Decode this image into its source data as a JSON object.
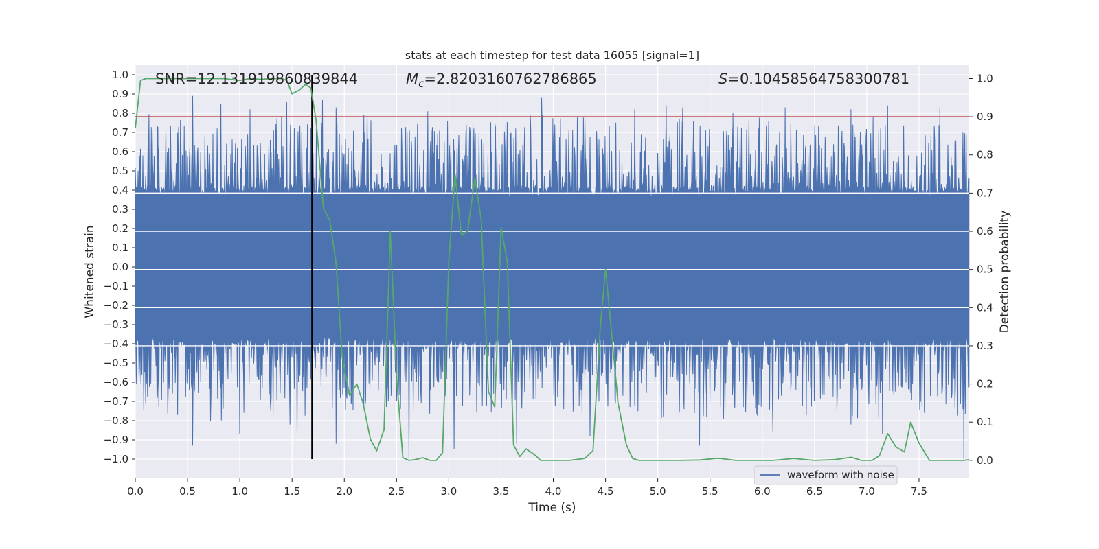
{
  "chart_data": {
    "type": "line",
    "title": "stats at each timestep for test data 16055 [signal=1]",
    "xlabel": "Time (s)",
    "ylabel_left": "Whitened strain",
    "ylabel_right": "Detection probability",
    "xlim": [
      0.0,
      7.98
    ],
    "ylim_left": [
      -1.1,
      1.05
    ],
    "ylim_right": [
      -0.047,
      1.035
    ],
    "x_ticks": [
      "0.0",
      "0.5",
      "1.0",
      "1.5",
      "2.0",
      "2.5",
      "3.0",
      "3.5",
      "4.0",
      "4.5",
      "5.0",
      "5.5",
      "6.0",
      "6.5",
      "7.0",
      "7.5"
    ],
    "x_tick_values": [
      0.0,
      0.5,
      1.0,
      1.5,
      2.0,
      2.5,
      3.0,
      3.5,
      4.0,
      4.5,
      5.0,
      5.5,
      6.0,
      6.5,
      7.0,
      7.5
    ],
    "y_ticks_left": [
      "1.0",
      "0.9",
      "0.8",
      "0.7",
      "0.6",
      "0.5",
      "0.4",
      "0.3",
      "0.2",
      "0.1",
      "0.0",
      "−0.1",
      "−0.2",
      "−0.3",
      "−0.4",
      "−0.5",
      "−0.6",
      "−0.7",
      "−0.8",
      "−0.9",
      "−1.0"
    ],
    "y_tick_values_left": [
      1.0,
      0.9,
      0.8,
      0.7,
      0.6,
      0.5,
      0.4,
      0.3,
      0.2,
      0.1,
      0.0,
      -0.1,
      -0.2,
      -0.3,
      -0.4,
      -0.5,
      -0.6,
      -0.7,
      -0.8,
      -0.9,
      -1.0
    ],
    "y_ticks_right": [
      "1.0",
      "0.9",
      "0.8",
      "0.7",
      "0.6",
      "0.5",
      "0.4",
      "0.3",
      "0.2",
      "0.1",
      "0.0"
    ],
    "y_tick_values_right": [
      1.0,
      0.9,
      0.8,
      0.7,
      0.6,
      0.5,
      0.4,
      0.3,
      0.2,
      0.1,
      0.0
    ],
    "grid": true,
    "legend": {
      "entries": [
        "waveform with noise"
      ],
      "placement": "lower-right"
    },
    "annotations": {
      "snr": "SNR=12.131919860839844",
      "mc_symbol": "M",
      "mc_subscript": "c",
      "mc_value": "=2.8203160762786865",
      "s_symbol": "S",
      "s_value": "=0.10458564758300781"
    },
    "threshold_right": 0.9,
    "event_time": 1.69,
    "waveform": {
      "name": "waveform with noise",
      "color": "#4c72b0",
      "sample_rate_note": "dense noise trace, envelope approx ±0.4 with spikes to ±0.9",
      "spikes_up": [
        [
          0.55,
          0.89
        ],
        [
          0.82,
          0.85
        ],
        [
          1.1,
          0.82
        ],
        [
          1.45,
          0.86
        ],
        [
          1.79,
          0.87
        ],
        [
          1.92,
          0.83
        ],
        [
          2.22,
          0.8
        ],
        [
          2.8,
          0.81
        ],
        [
          3.23,
          0.75
        ],
        [
          3.89,
          0.88
        ],
        [
          4.3,
          0.79
        ],
        [
          4.78,
          0.82
        ],
        [
          5.08,
          0.84
        ],
        [
          5.24,
          0.83
        ],
        [
          5.72,
          0.8
        ],
        [
          6.22,
          0.83
        ],
        [
          6.85,
          0.82
        ],
        [
          7.2,
          0.84
        ],
        [
          7.7,
          0.83
        ]
      ],
      "spikes_down": [
        [
          0.55,
          -0.93
        ],
        [
          0.72,
          -0.8
        ],
        [
          1.0,
          -0.87
        ],
        [
          1.48,
          -0.82
        ],
        [
          1.55,
          -0.88
        ],
        [
          1.92,
          -0.92
        ],
        [
          2.62,
          -1.0
        ],
        [
          3.05,
          -0.95
        ],
        [
          3.65,
          -0.92
        ],
        [
          4.35,
          -0.88
        ],
        [
          5.4,
          -0.93
        ],
        [
          6.1,
          -0.86
        ],
        [
          6.85,
          -0.82
        ],
        [
          7.15,
          -0.87
        ],
        [
          7.93,
          -1.0
        ]
      ]
    },
    "probability": {
      "name": "Detection probability",
      "color": "#55a868",
      "x": [
        0.0,
        0.05,
        0.1,
        0.2,
        0.4,
        0.6,
        0.85,
        1.0,
        1.1,
        1.2,
        1.3,
        1.4,
        1.45,
        1.5,
        1.57,
        1.63,
        1.68,
        1.73,
        1.8,
        1.86,
        1.92,
        1.98,
        2.05,
        2.12,
        2.18,
        2.25,
        2.31,
        2.38,
        2.44,
        2.5,
        2.56,
        2.62,
        2.68,
        2.75,
        2.82,
        2.88,
        2.94,
        3.0,
        3.06,
        3.12,
        3.18,
        3.25,
        3.31,
        3.38,
        3.44,
        3.5,
        3.56,
        3.62,
        3.68,
        3.74,
        3.82,
        3.88,
        4.0,
        4.15,
        4.3,
        4.38,
        4.45,
        4.5,
        4.56,
        4.62,
        4.7,
        4.76,
        4.82,
        4.9,
        5.0,
        5.2,
        5.4,
        5.55,
        5.6,
        5.75,
        5.9,
        6.1,
        6.3,
        6.5,
        6.7,
        6.85,
        6.95,
        7.05,
        7.12,
        7.2,
        7.28,
        7.36,
        7.42,
        7.5,
        7.6,
        7.8,
        7.93,
        7.98
      ],
      "y": [
        0.87,
        0.995,
        1.0,
        1.0,
        1.0,
        1.0,
        1.0,
        0.995,
        1.0,
        0.998,
        1.0,
        1.0,
        0.995,
        0.96,
        0.97,
        0.985,
        0.975,
        0.89,
        0.66,
        0.63,
        0.52,
        0.27,
        0.17,
        0.2,
        0.15,
        0.055,
        0.025,
        0.08,
        0.6,
        0.22,
        0.007,
        0.0,
        0.002,
        0.007,
        0.0,
        0.0,
        0.02,
        0.52,
        0.75,
        0.59,
        0.6,
        0.74,
        0.63,
        0.18,
        0.14,
        0.61,
        0.52,
        0.04,
        0.01,
        0.03,
        0.015,
        0.0,
        0.0,
        0.0,
        0.005,
        0.025,
        0.35,
        0.5,
        0.33,
        0.15,
        0.04,
        0.005,
        0.0,
        0.0,
        0.0,
        0.0,
        0.001,
        0.005,
        0.005,
        0.0,
        0.0,
        0.0,
        0.005,
        0.0,
        0.002,
        0.008,
        0.0,
        0.0,
        0.012,
        0.07,
        0.035,
        0.022,
        0.1,
        0.045,
        0.0,
        0.0,
        0.0,
        0.002
      ]
    }
  }
}
